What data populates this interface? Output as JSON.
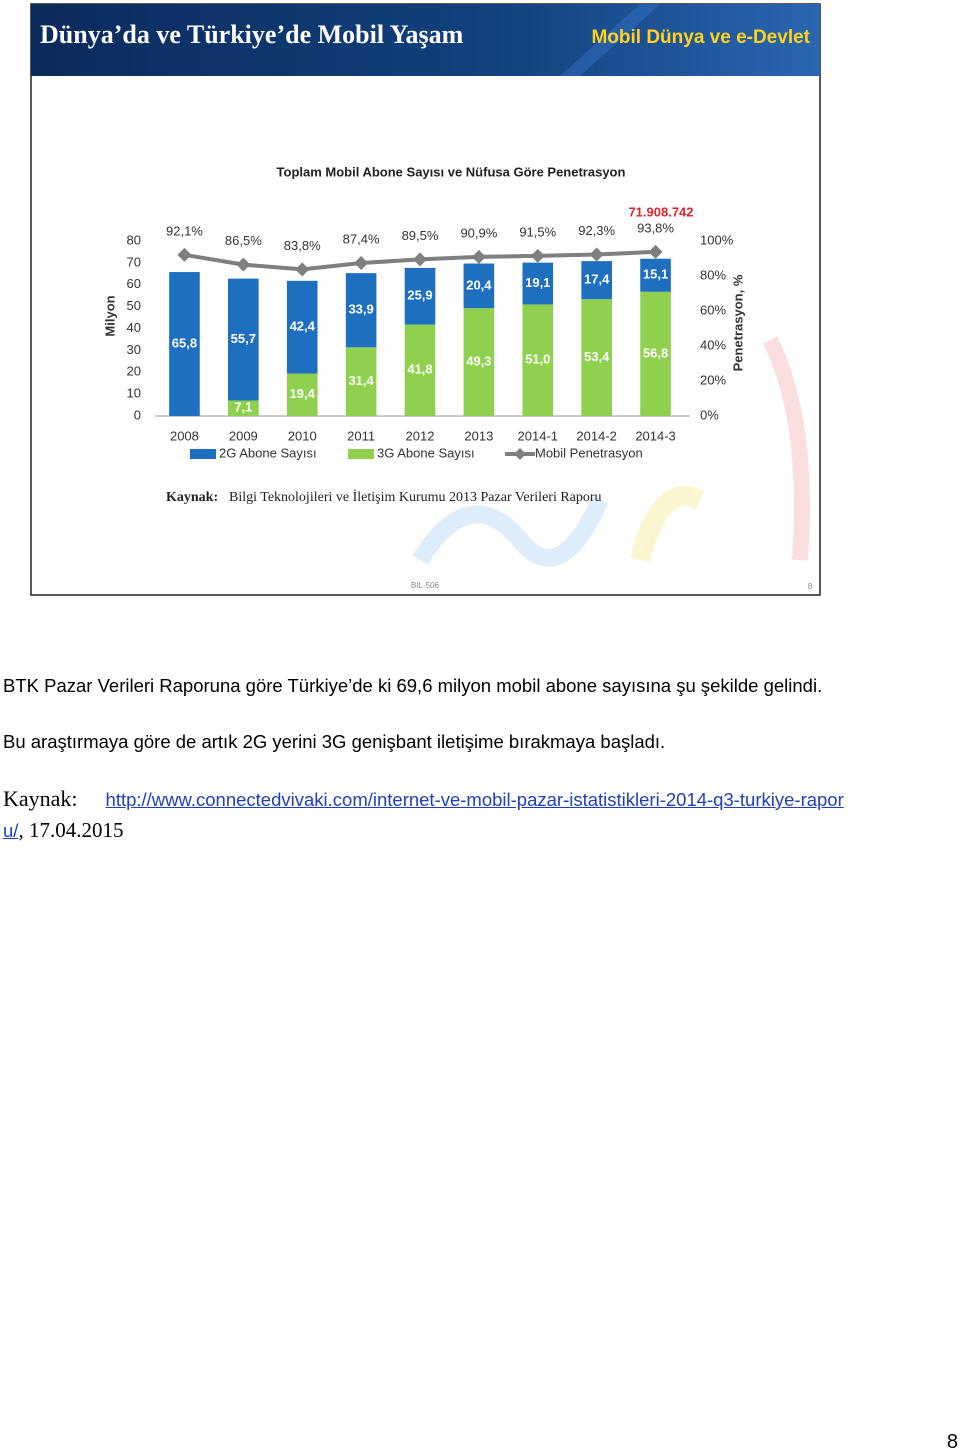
{
  "slide": {
    "title": "Dünya’da ve Türkiye’de Mobil Yaşam",
    "brand": "Mobil Dünya ve e-Devlet",
    "source_label": "Kaynak:",
    "source_text": "Bilgi Teknolojileri ve İletişim Kurumu 2013 Pazar Verileri Raporu",
    "footer_code": "BIL-506",
    "footer_page": "8"
  },
  "chart_data": {
    "type": "bar",
    "stacked": true,
    "title": "Toplam Mobil Abone Sayısı ve Nüfusa Göre Penetrasyon",
    "y_label": "Milyon",
    "y2_label": "Penetrasyon, %",
    "categories": [
      "2008",
      "2009",
      "2010",
      "2011",
      "2012",
      "2013",
      "2014-1",
      "2014-2",
      "2014-3"
    ],
    "series": [
      {
        "name": "2G Abone Sayısı",
        "color": "#1f6fc0",
        "values": [
          65.8,
          55.7,
          42.4,
          33.9,
          25.9,
          20.4,
          19.1,
          17.4,
          15.1
        ],
        "value_labels": [
          "65,8",
          "55,7",
          "42,4",
          "33,9",
          "25,9",
          "20,4",
          "19,1",
          "17,4",
          "15,1"
        ]
      },
      {
        "name": "3G Abone Sayısı",
        "color": "#8fd14f",
        "values": [
          null,
          7.1,
          19.4,
          31.4,
          41.8,
          49.3,
          51.0,
          53.4,
          56.8
        ],
        "value_labels": [
          null,
          "7,1",
          "19,4",
          "31,4",
          "41,8",
          "49,3",
          "51,0",
          "53,4",
          "56,8"
        ]
      },
      {
        "name": "Mobil Penetrasyon",
        "color": "#7f7f7f",
        "axis": "y2",
        "type": "line",
        "values": [
          92.1,
          86.5,
          83.8,
          87.4,
          89.5,
          90.9,
          91.5,
          92.3,
          93.8
        ],
        "value_labels": [
          "92,1%",
          "86,5%",
          "83,8%",
          "87,4%",
          "89,5%",
          "90,9%",
          "91,5%",
          "92,3%",
          "93,8%"
        ]
      }
    ],
    "annotation": "71.908.742",
    "ylim": [
      0,
      80
    ],
    "yticks": [
      0,
      10,
      20,
      30,
      40,
      50,
      60,
      70,
      80
    ],
    "y2lim": [
      0,
      100
    ],
    "y2ticks": [
      {
        "value": 0,
        "label": "0%"
      },
      {
        "value": 20,
        "label": "20%"
      },
      {
        "value": 40,
        "label": "40%"
      },
      {
        "value": 60,
        "label": "60%"
      },
      {
        "value": 80,
        "label": "80%"
      },
      {
        "value": 100,
        "label": "100%"
      }
    ],
    "grid": false,
    "legend": "bottom"
  },
  "paragraphs": [
    "BTK Pazar Verileri Raporuna göre Türkiye’de ki 69,6 milyon mobil abone sayısına şu şekilde gelindi.",
    "Bu araştırmaya göre de artık 2G yerini 3G genişbant iletişime bırakmaya başladı."
  ],
  "source": {
    "label": "Kaynak:",
    "url": "http://www.connectedvivaki.com/internet-ve-mobil-pazar-istatistikleri-2014-q3-turkiye-raporu/",
    "date": ", 17.04.2015"
  },
  "page_number": "8"
}
